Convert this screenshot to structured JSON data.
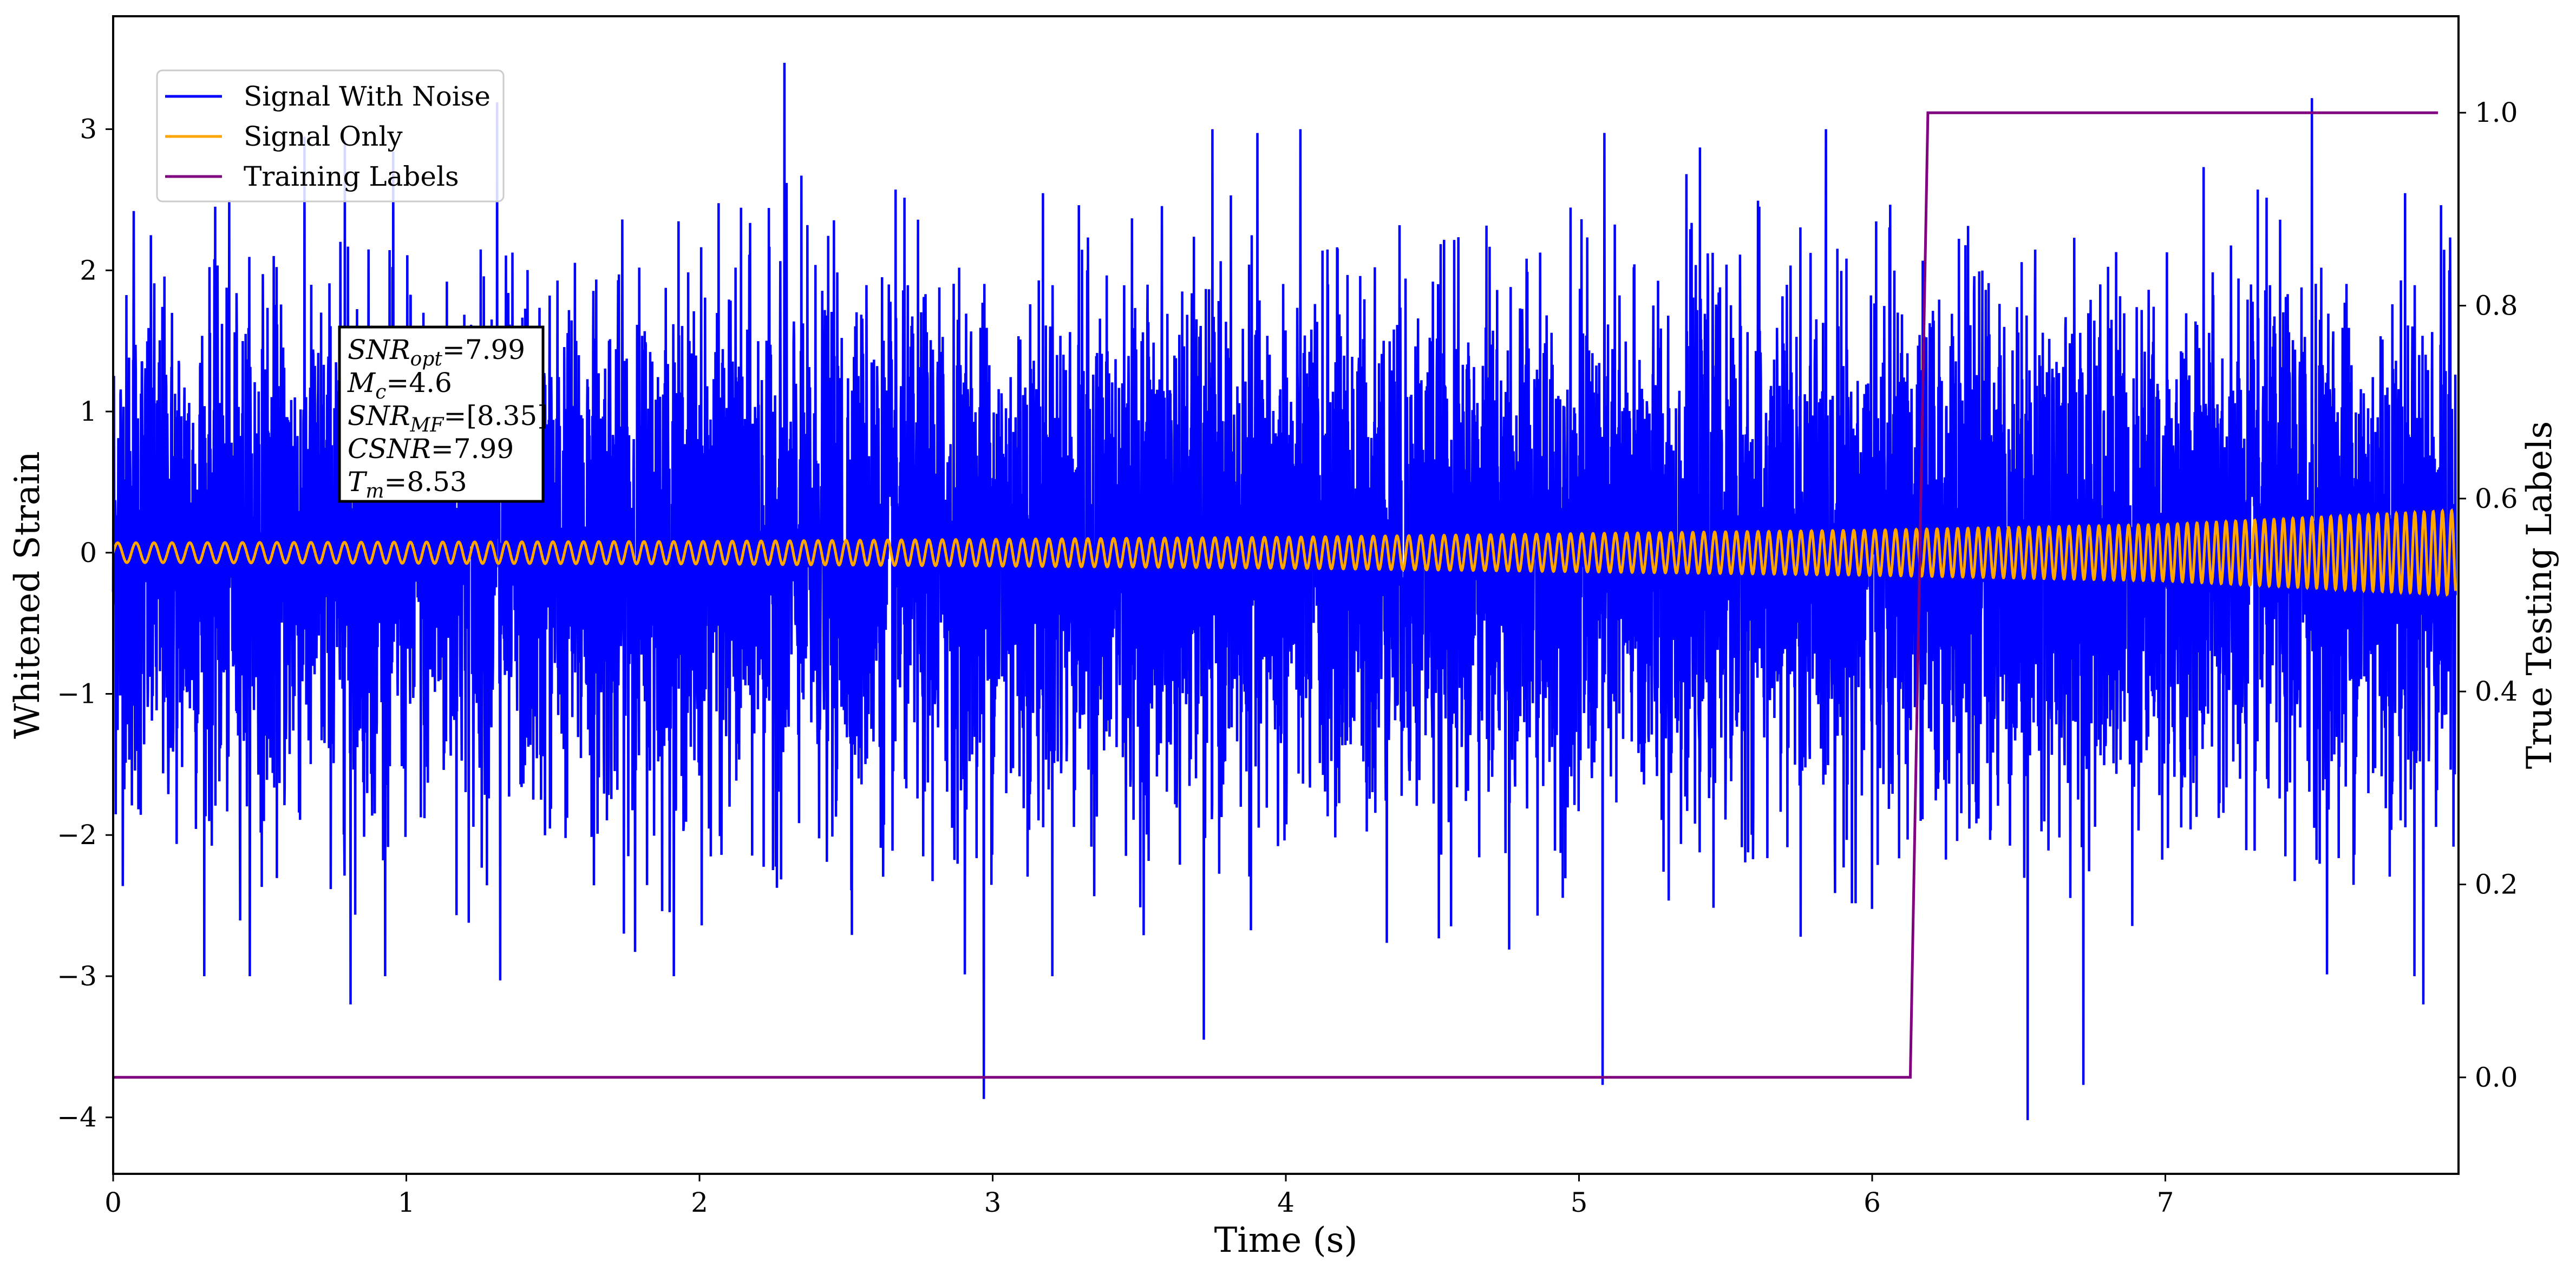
{
  "chart_data": {
    "type": "line",
    "xlabel": "Time (s)",
    "ylabel": "Whitened Strain",
    "ylabel_right": "True Testing Labels",
    "xlim": [
      0,
      8
    ],
    "ylim": [
      -4.4,
      3.8
    ],
    "ylim_right": [
      -0.1,
      1.1
    ],
    "x_ticks": [
      "0",
      "1",
      "2",
      "3",
      "4",
      "5",
      "6",
      "7"
    ],
    "y_ticks": [
      "−4",
      "−3",
      "−2",
      "−1",
      "0",
      "1",
      "2",
      "3"
    ],
    "y_right_ticks": [
      "0.0",
      "0.2",
      "0.4",
      "0.6",
      "0.8",
      "1.0"
    ],
    "legend": {
      "placement": "upper-left",
      "entries": [
        "Signal With Noise",
        "Signal Only",
        "Training Labels"
      ]
    },
    "series": [
      {
        "name": "Signal With Noise",
        "color": "#0000ff",
        "axis": "left",
        "description_stats": {
          "std": 0.9,
          "min": -4.02,
          "max": 3.47
        },
        "notable_peaks": [
          {
            "x": 0.07,
            "y": 2.42
          },
          {
            "x": 0.79,
            "y": 2.92
          },
          {
            "x": 0.81,
            "y": -3.2
          },
          {
            "x": 1.31,
            "y": 3.19
          },
          {
            "x": 1.32,
            "y": -3.03
          },
          {
            "x": 2.29,
            "y": 3.47
          },
          {
            "x": 2.97,
            "y": -3.87
          },
          {
            "x": 3.72,
            "y": -3.45
          },
          {
            "x": 5.08,
            "y": -3.77
          },
          {
            "x": 6.53,
            "y": -4.02
          },
          {
            "x": 6.72,
            "y": -3.77
          },
          {
            "x": 7.5,
            "y": 3.22
          },
          {
            "x": 7.88,
            "y": -3.2
          }
        ]
      },
      {
        "name": "Signal Only",
        "color": "#ffa500",
        "axis": "left",
        "envelope": [
          [
            0,
            0.07
          ],
          [
            2,
            0.08
          ],
          [
            4,
            0.11
          ],
          [
            6,
            0.16
          ],
          [
            7,
            0.2
          ],
          [
            8,
            0.3
          ]
        ],
        "start_frequency_hz": 16,
        "end_frequency_hz": 32
      },
      {
        "name": "Training Labels",
        "color": "#800080",
        "axis": "right",
        "x": [
          0,
          6.13,
          6.19,
          7.93
        ],
        "values": [
          0,
          0,
          1,
          1
        ]
      }
    ],
    "annotation": {
      "lines": [
        {
          "base": "SNR",
          "sub": "opt",
          "value": "=7.99"
        },
        {
          "base": "M",
          "sub": "c",
          "value": "=4.6"
        },
        {
          "base": "SNR",
          "sub": "MF",
          "value": "=[8.35]"
        },
        {
          "base": "CSNR",
          "sub": "",
          "value": "=7.99"
        },
        {
          "base": "T",
          "sub": "m",
          "value": "=8.53"
        }
      ]
    }
  }
}
